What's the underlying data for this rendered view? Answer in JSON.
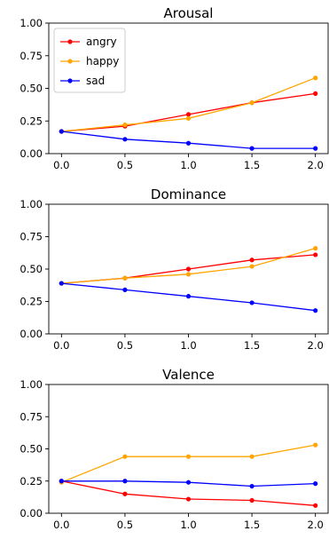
{
  "figure": {
    "colors": {
      "angry": "#ff0000",
      "happy": "#ffa500",
      "sad": "#0000ff"
    }
  },
  "chart_data": [
    {
      "type": "line",
      "title": "Arousal",
      "x": [
        0.0,
        0.5,
        1.0,
        1.5,
        2.0
      ],
      "xtick_labels": [
        "0.0",
        "0.5",
        "1.0",
        "1.5",
        "2.0"
      ],
      "ytick_values": [
        0.0,
        0.25,
        0.5,
        0.75,
        1.0
      ],
      "ytick_labels": [
        "0.00",
        "0.25",
        "0.50",
        "0.75",
        "1.00"
      ],
      "ylim": [
        0,
        1
      ],
      "xlabel": "",
      "ylabel": "",
      "legend": {
        "placement": "upper-left",
        "entries": [
          "angry",
          "happy",
          "sad"
        ]
      },
      "series": [
        {
          "name": "angry",
          "color": "#ff0000",
          "values": [
            0.17,
            0.21,
            0.3,
            0.39,
            0.46
          ]
        },
        {
          "name": "happy",
          "color": "#ffa500",
          "values": [
            0.17,
            0.22,
            0.27,
            0.39,
            0.58
          ]
        },
        {
          "name": "sad",
          "color": "#0000ff",
          "values": [
            0.17,
            0.11,
            0.08,
            0.04,
            0.04
          ]
        }
      ]
    },
    {
      "type": "line",
      "title": "Dominance",
      "x": [
        0.0,
        0.5,
        1.0,
        1.5,
        2.0
      ],
      "xtick_labels": [
        "0.0",
        "0.5",
        "1.0",
        "1.5",
        "2.0"
      ],
      "ytick_values": [
        0.0,
        0.25,
        0.5,
        0.75,
        1.0
      ],
      "ytick_labels": [
        "0.00",
        "0.25",
        "0.50",
        "0.75",
        "1.00"
      ],
      "ylim": [
        0,
        1
      ],
      "xlabel": "",
      "ylabel": "",
      "series": [
        {
          "name": "angry",
          "color": "#ff0000",
          "values": [
            0.39,
            0.43,
            0.5,
            0.57,
            0.61
          ]
        },
        {
          "name": "happy",
          "color": "#ffa500",
          "values": [
            0.39,
            0.43,
            0.46,
            0.52,
            0.66
          ]
        },
        {
          "name": "sad",
          "color": "#0000ff",
          "values": [
            0.39,
            0.34,
            0.29,
            0.24,
            0.18
          ]
        }
      ]
    },
    {
      "type": "line",
      "title": "Valence",
      "x": [
        0.0,
        0.5,
        1.0,
        1.5,
        2.0
      ],
      "xtick_labels": [
        "0.0",
        "0.5",
        "1.0",
        "1.5",
        "2.0"
      ],
      "ytick_values": [
        0.0,
        0.25,
        0.5,
        0.75,
        1.0
      ],
      "ytick_labels": [
        "0.00",
        "0.25",
        "0.50",
        "0.75",
        "1.00"
      ],
      "ylim": [
        0,
        1
      ],
      "xlabel": "",
      "ylabel": "",
      "series": [
        {
          "name": "angry",
          "color": "#ff0000",
          "values": [
            0.25,
            0.15,
            0.11,
            0.1,
            0.06
          ]
        },
        {
          "name": "happy",
          "color": "#ffa500",
          "values": [
            0.24,
            0.44,
            0.44,
            0.44,
            0.53
          ]
        },
        {
          "name": "sad",
          "color": "#0000ff",
          "values": [
            0.25,
            0.25,
            0.24,
            0.21,
            0.23
          ]
        }
      ]
    }
  ]
}
